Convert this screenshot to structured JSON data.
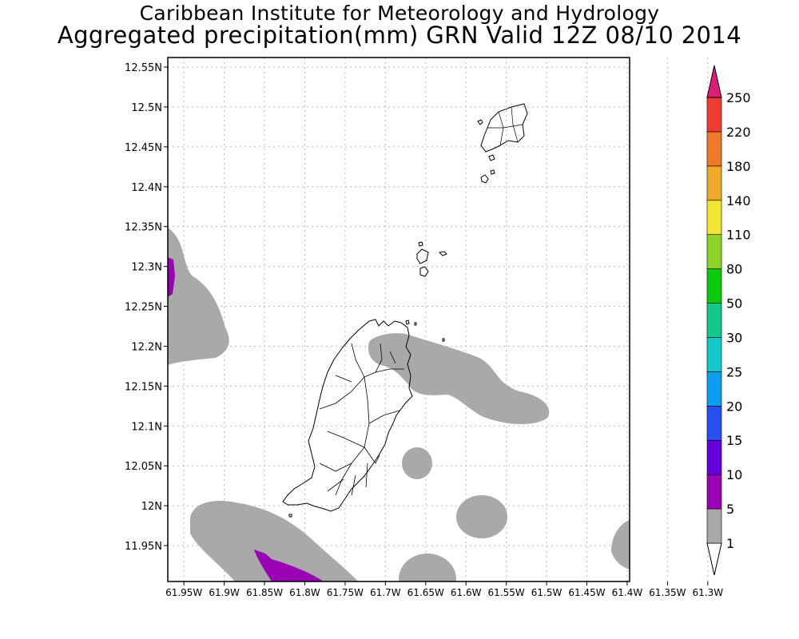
{
  "title": {
    "line1": "Caribbean Institute for Meteorology and Hydrology",
    "line2": "Aggregated precipitation(mm) GRN Valid 12Z 08/10 2014"
  },
  "map": {
    "lat_ticks": [
      "12.55N",
      "12.5N",
      "12.45N",
      "12.4N",
      "12.35N",
      "12.3N",
      "12.25N",
      "12.2N",
      "12.15N",
      "12.1N",
      "12.05N",
      "12N",
      "11.95N"
    ],
    "lon_ticks": [
      "61.95W",
      "61.9W",
      "61.85W",
      "61.8W",
      "61.75W",
      "61.7W",
      "61.65W",
      "61.6W",
      "61.55W",
      "61.5W",
      "61.45W",
      "61.4W",
      "61.35W",
      "61.3W"
    ],
    "lon_range": [
      -61.97,
      -61.397
    ],
    "lat_range": [
      11.905,
      12.562
    ],
    "grid": true,
    "regions": [
      "Grenada",
      "Carriacou",
      "Petite Martinique"
    ]
  },
  "colorbar": {
    "levels": [
      "1",
      "5",
      "10",
      "15",
      "20",
      "25",
      "30",
      "50",
      "80",
      "110",
      "140",
      "180",
      "220",
      "250"
    ],
    "colors": [
      "#ffffff",
      "#a9a9a9",
      "#9b00b4",
      "#6400dc",
      "#2850f0",
      "#0aa0f0",
      "#12c8c8",
      "#12c88c",
      "#0ac80a",
      "#8cd228",
      "#f0e632",
      "#f0aa28",
      "#f07828",
      "#f03c32",
      "#dc1e78"
    ]
  },
  "precipitation": {
    "color_1_5": "#a9a9a9",
    "color_5_10": "#9b00b4"
  },
  "colors": {
    "grid": "#bbbbbb",
    "coastline": "#000000",
    "frame": "#000000"
  }
}
